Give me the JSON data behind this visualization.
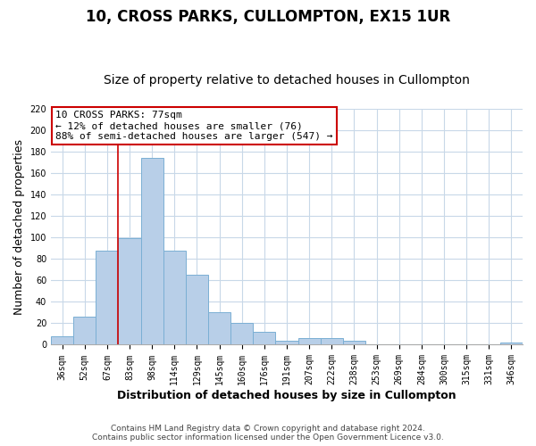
{
  "title": "10, CROSS PARKS, CULLOMPTON, EX15 1UR",
  "subtitle": "Size of property relative to detached houses in Cullompton",
  "xlabel": "Distribution of detached houses by size in Cullompton",
  "ylabel": "Number of detached properties",
  "bar_labels": [
    "36sqm",
    "52sqm",
    "67sqm",
    "83sqm",
    "98sqm",
    "114sqm",
    "129sqm",
    "145sqm",
    "160sqm",
    "176sqm",
    "191sqm",
    "207sqm",
    "222sqm",
    "238sqm",
    "253sqm",
    "269sqm",
    "284sqm",
    "300sqm",
    "315sqm",
    "331sqm",
    "346sqm"
  ],
  "bar_values": [
    8,
    26,
    88,
    99,
    174,
    88,
    65,
    30,
    20,
    12,
    4,
    6,
    6,
    4,
    0,
    0,
    0,
    0,
    0,
    0,
    2
  ],
  "bar_color": "#b8cfe8",
  "bar_edge_color": "#7bafd4",
  "ylim": [
    0,
    220
  ],
  "yticks": [
    0,
    20,
    40,
    60,
    80,
    100,
    120,
    140,
    160,
    180,
    200,
    220
  ],
  "vline_x_index": 2,
  "vline_color": "#cc0000",
  "annotation_text": "10 CROSS PARKS: 77sqm\n← 12% of detached houses are smaller (76)\n88% of semi-detached houses are larger (547) →",
  "annotation_box_facecolor": "#ffffff",
  "annotation_box_edgecolor": "#cc0000",
  "footer_line1": "Contains HM Land Registry data © Crown copyright and database right 2024.",
  "footer_line2": "Contains public sector information licensed under the Open Government Licence v3.0.",
  "bg_color": "#ffffff",
  "grid_color": "#c8d8e8",
  "title_fontsize": 12,
  "subtitle_fontsize": 10,
  "ylabel_fontsize": 9,
  "xlabel_fontsize": 9,
  "tick_fontsize": 7,
  "annotation_fontsize": 8,
  "footer_fontsize": 6.5
}
